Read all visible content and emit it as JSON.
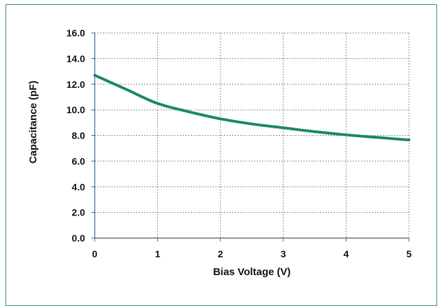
{
  "chart_data": {
    "type": "line",
    "title": "",
    "xlabel": "Bias Voltage (V)",
    "ylabel": "Capacitance (pF)",
    "xlim": [
      0,
      5
    ],
    "ylim": [
      0,
      16
    ],
    "x_ticks": [
      "0",
      "1",
      "2",
      "3",
      "4",
      "5"
    ],
    "y_ticks": [
      "0.0",
      "2.0",
      "4.0",
      "6.0",
      "8.0",
      "10.0",
      "12.0",
      "14.0",
      "16.0"
    ],
    "grid": true,
    "series": [
      {
        "color": "#1a8a5a",
        "x": [
          0,
          0.5,
          1,
          1.5,
          2,
          2.5,
          3,
          3.5,
          4,
          4.5,
          5
        ],
        "y": [
          12.7,
          11.6,
          10.5,
          9.85,
          9.3,
          8.9,
          8.6,
          8.3,
          8.05,
          7.85,
          7.65
        ]
      }
    ]
  },
  "colors": {
    "frame": "#2e9a5a",
    "grid": "#8a8a8a",
    "axis": "#3a5fa8",
    "series": "#1a8a5a"
  }
}
